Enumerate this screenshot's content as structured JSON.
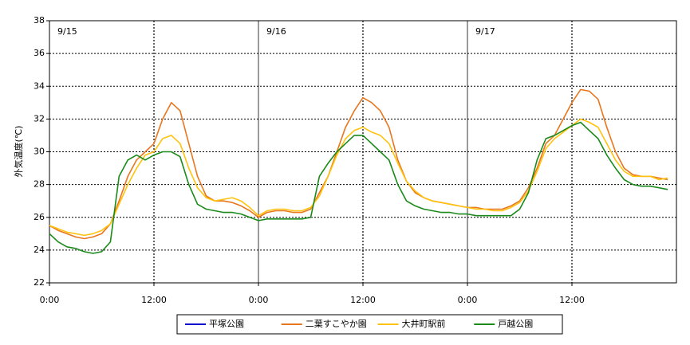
{
  "chart_data": {
    "type": "line",
    "y_label": "外気温度(℃)",
    "annotations": [
      {
        "text": "9/15",
        "x": 0
      },
      {
        "text": "9/16",
        "x": 24
      },
      {
        "text": "9/17",
        "x": 48
      }
    ],
    "x": [
      0,
      1,
      2,
      3,
      4,
      5,
      6,
      7,
      8,
      9,
      10,
      11,
      12,
      13,
      14,
      15,
      16,
      17,
      18,
      19,
      20,
      21,
      22,
      23,
      24,
      25,
      26,
      27,
      28,
      29,
      30,
      31,
      32,
      33,
      34,
      35,
      36,
      37,
      38,
      39,
      40,
      41,
      42,
      43,
      44,
      45,
      46,
      47,
      48,
      49,
      50,
      51,
      52,
      53,
      54,
      55,
      56,
      57,
      58,
      59,
      60,
      61,
      62,
      63,
      64,
      65,
      66,
      67,
      68,
      69,
      70,
      71
    ],
    "xlim": [
      0,
      72
    ],
    "xticks": [
      {
        "value": 0,
        "label": "0:00"
      },
      {
        "value": 12,
        "label": "12:00"
      },
      {
        "value": 24,
        "label": "0:00"
      },
      {
        "value": 36,
        "label": "12:00"
      },
      {
        "value": 48,
        "label": "0:00"
      },
      {
        "value": 60,
        "label": "12:00"
      }
    ],
    "ylim": [
      22,
      38
    ],
    "yticks": [
      22,
      24,
      26,
      28,
      30,
      32,
      34,
      36,
      38
    ],
    "grid": true,
    "legend": "bottom",
    "series": [
      {
        "name": "平塚公園",
        "color": "#0000cc",
        "values": [
          null,
          null,
          null,
          null,
          null,
          null,
          null,
          null,
          null,
          null,
          null,
          null,
          null,
          null,
          null,
          null,
          null,
          null,
          null,
          null,
          null,
          null,
          null,
          null,
          null,
          null,
          null,
          null,
          null,
          null,
          null,
          null,
          null,
          null,
          null,
          null,
          null,
          null,
          null,
          null,
          null,
          null,
          null,
          null,
          null,
          null,
          null,
          null,
          null,
          null,
          null,
          null,
          null,
          null,
          null,
          null,
          null,
          null,
          null,
          null,
          null,
          null,
          null,
          null,
          null,
          null,
          null,
          null,
          null,
          null,
          null,
          null
        ]
      },
      {
        "name": "二葉すこやか園",
        "color": "#e8761e",
        "values": [
          25.5,
          25.2,
          25.0,
          24.8,
          24.7,
          24.8,
          25.0,
          25.6,
          27.0,
          28.5,
          29.5,
          30.0,
          30.5,
          32.0,
          33.0,
          32.5,
          30.5,
          28.5,
          27.3,
          27.0,
          27.0,
          26.9,
          26.7,
          26.4,
          26.0,
          26.3,
          26.4,
          26.4,
          26.3,
          26.3,
          26.5,
          27.5,
          28.5,
          30.0,
          31.5,
          32.5,
          33.3,
          33.0,
          32.5,
          31.5,
          29.5,
          28.2,
          27.5,
          27.2,
          27.0,
          26.9,
          26.8,
          26.7,
          26.6,
          26.6,
          26.5,
          26.5,
          26.5,
          26.7,
          27.0,
          27.8,
          29.0,
          30.5,
          31.0,
          32.0,
          33.0,
          33.8,
          33.7,
          33.2,
          31.5,
          30.0,
          29.0,
          28.6,
          28.5,
          28.5,
          28.4,
          28.3
        ]
      },
      {
        "name": "大井町駅前",
        "color": "#ffc20e",
        "values": [
          25.5,
          25.3,
          25.1,
          25.0,
          24.9,
          25.0,
          25.2,
          25.6,
          26.8,
          28.0,
          29.0,
          29.8,
          30.0,
          30.8,
          31.0,
          30.5,
          29.0,
          27.8,
          27.2,
          27.0,
          27.1,
          27.2,
          27.0,
          26.6,
          26.1,
          26.4,
          26.5,
          26.5,
          26.4,
          26.4,
          26.6,
          27.3,
          28.5,
          29.8,
          30.8,
          31.3,
          31.5,
          31.2,
          31.0,
          30.5,
          29.3,
          28.2,
          27.6,
          27.2,
          27.0,
          26.9,
          26.8,
          26.7,
          26.6,
          26.5,
          26.5,
          26.4,
          26.4,
          26.6,
          26.9,
          27.6,
          28.8,
          30.2,
          30.8,
          31.2,
          31.6,
          32.0,
          31.8,
          31.5,
          30.5,
          29.5,
          28.8,
          28.5,
          28.5,
          28.5,
          28.3,
          28.4
        ]
      },
      {
        "name": "戸越公園",
        "color": "#1a8a1a",
        "values": [
          25.0,
          24.5,
          24.2,
          24.1,
          23.9,
          23.8,
          23.9,
          24.5,
          28.5,
          29.5,
          29.8,
          29.5,
          29.8,
          30.0,
          30.0,
          29.7,
          28.0,
          26.8,
          26.5,
          26.4,
          26.3,
          26.3,
          26.2,
          26.0,
          25.8,
          25.9,
          25.9,
          25.9,
          25.9,
          25.9,
          26.0,
          28.5,
          29.3,
          30.0,
          30.5,
          31.0,
          31.0,
          30.5,
          30.0,
          29.5,
          28.0,
          27.0,
          26.7,
          26.5,
          26.4,
          26.3,
          26.3,
          26.2,
          26.2,
          26.1,
          26.1,
          26.1,
          26.1,
          26.1,
          26.5,
          27.5,
          29.5,
          30.8,
          31.0,
          31.3,
          31.6,
          31.8,
          31.3,
          30.8,
          29.8,
          29.0,
          28.3,
          28.0,
          27.9,
          27.9,
          27.8,
          27.7
        ]
      }
    ]
  }
}
